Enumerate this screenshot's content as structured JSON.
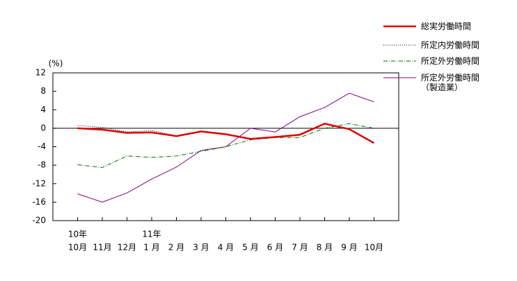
{
  "chart_data": {
    "type": "line",
    "y_unit": "(%)",
    "categories": [
      "10月",
      "11月",
      "12月",
      "1 月",
      "2 月",
      "3 月",
      "4 月",
      "5 月",
      "6 月",
      "7 月",
      "8 月",
      "9 月",
      "10月"
    ],
    "year_labels": [
      "10年",
      null,
      null,
      "11年",
      null,
      null,
      null,
      null,
      null,
      null,
      null,
      null,
      null
    ],
    "ylim": [
      -20,
      12
    ],
    "yticks": [
      -20,
      -16,
      -12,
      -8,
      -4,
      0,
      4,
      8,
      12
    ],
    "series": [
      {
        "name": "総実労働時間",
        "color": "#e00000",
        "style": "solid-thick",
        "values": [
          0,
          -0.3,
          -1,
          -0.9,
          -1.7,
          -0.7,
          -1.3,
          -2.3,
          -1.9,
          -1.4,
          1,
          -0.2,
          -3.2
        ]
      },
      {
        "name": "所定内労働時間",
        "color": "#000000",
        "style": "dotted",
        "values": [
          0.6,
          0.2,
          -0.8,
          -0.5,
          -1.6,
          -0.6,
          -1.2,
          -2.2,
          -1.8,
          -1.3,
          0.9,
          -0.1,
          -3.1
        ]
      },
      {
        "name": "所定外労働時間",
        "color": "#006600",
        "style": "dash-dot",
        "values": [
          -7.9,
          -8.5,
          -6,
          -6.3,
          -6,
          -5,
          -4,
          -2.5,
          -2,
          -2,
          0,
          1,
          0
        ]
      },
      {
        "name": "所定外労働時間\n（製造業）",
        "color": "#800080",
        "style": "solid",
        "values": [
          -14.2,
          -16,
          -14,
          -11,
          -8.4,
          -4.8,
          -4,
          0,
          -0.8,
          2.5,
          4.5,
          7.6,
          5.7
        ]
      }
    ]
  }
}
